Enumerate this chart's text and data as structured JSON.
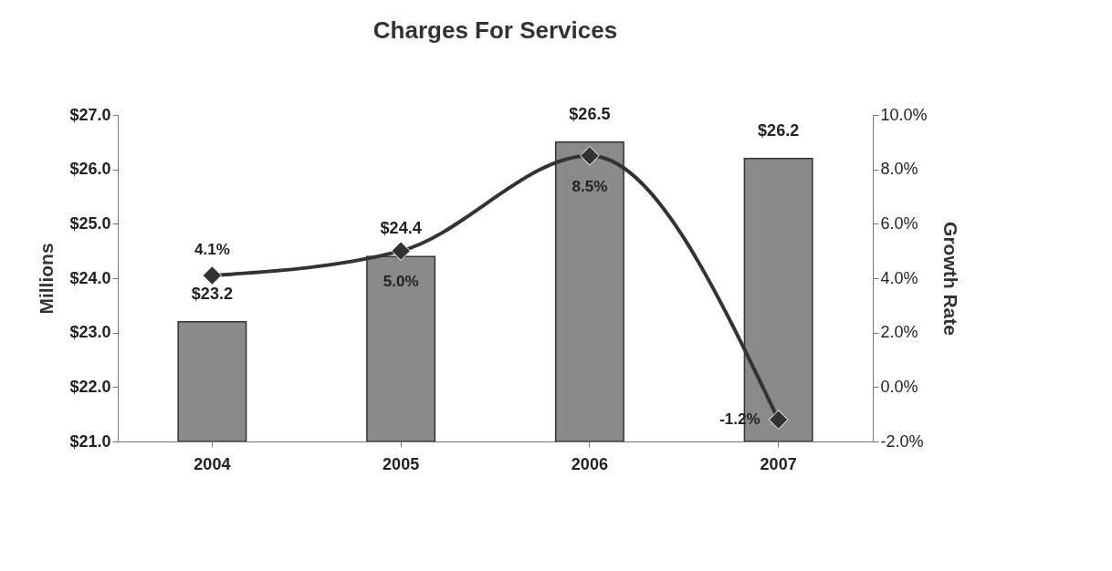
{
  "chart_data": {
    "type": "bar",
    "title": "Charges For Services",
    "ylabel": "Millions",
    "y2label": "Growth Rate",
    "categories": [
      "2004",
      "2005",
      "2006",
      "2007"
    ],
    "series": [
      {
        "color": "#8a8a8a",
        "values": [
          23.2,
          24.4,
          26.5,
          26.2
        ],
        "value_labels": [
          "$23.2",
          "$24.4",
          "$26.5",
          "$26.2"
        ]
      },
      {
        "type": "line",
        "axis": "y2",
        "color": "#333333",
        "values": [
          4.1,
          5.0,
          8.5,
          -1.2
        ],
        "value_labels": [
          "4.1%",
          "5.0%",
          "8.5%",
          "-1.2%"
        ],
        "marker": "diamond",
        "line_style": "solid"
      }
    ],
    "ylim": [
      21,
      27
    ],
    "yticks": [
      {
        "value": 21,
        "label": "$21.0"
      },
      {
        "value": 22,
        "label": "$22.0"
      },
      {
        "value": 23,
        "label": "$23.0"
      },
      {
        "value": 24,
        "label": "$24.0"
      },
      {
        "value": 25,
        "label": "$25.0"
      },
      {
        "value": 26,
        "label": "$26.0"
      },
      {
        "value": 27,
        "label": "$27.0"
      }
    ],
    "y2lim": [
      -2,
      10
    ],
    "y2ticks": [
      {
        "value": -2,
        "label": "-2.0%"
      },
      {
        "value": 0,
        "label": "0.0%"
      },
      {
        "value": 2,
        "label": "2.0%"
      },
      {
        "value": 4,
        "label": "4.0%"
      },
      {
        "value": 6,
        "label": "6.0%"
      },
      {
        "value": 8,
        "label": "8.0%"
      },
      {
        "value": 10,
        "label": "10.0%"
      }
    ],
    "grid": false
  }
}
